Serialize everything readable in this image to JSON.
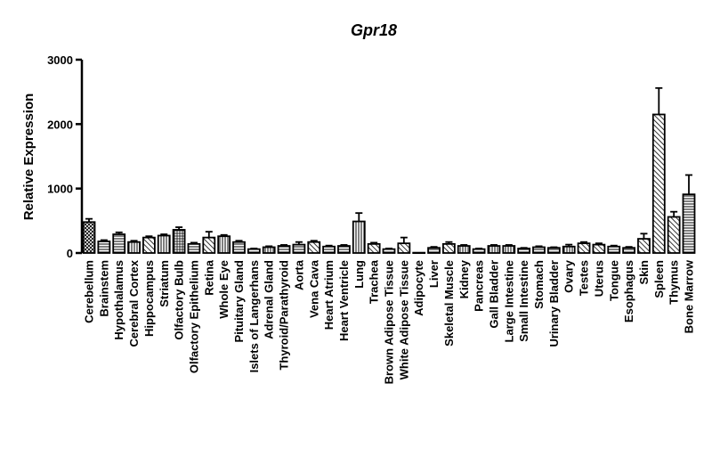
{
  "chart_data": {
    "type": "bar",
    "title": "Gpr18",
    "xlabel": "",
    "ylabel": "Relative Expression",
    "ylim": [
      0,
      3000
    ],
    "yticks": [
      "0",
      "1000",
      "2000",
      "3000"
    ],
    "grid": false,
    "legend": "none",
    "categories": [
      "Cerebellum",
      "Brainstem",
      "Hypothalamus",
      "Cerebral Cortex",
      "Hippocampus",
      "Striatum",
      "Olfactory Bulb",
      "Olfactory Epithelium",
      "Retina",
      "Whole Eye",
      "Pituitary Gland",
      "Islets of Langerhans",
      "Adrenal Gland",
      "Thyroid/Parathyroid",
      "Aorta",
      "Vena Cava",
      "Heart Atrium",
      "Heart Ventricle",
      "Lung",
      "Trachea",
      "Brown Adipose Tissue",
      "White Adipose Tissue",
      "Adipocyte",
      "Liver",
      "Skeletal Muscle",
      "Kidney",
      "Pancreas",
      "Gall Bladder",
      "Large Intestine",
      "Small Intestine",
      "Stomach",
      "Urinary Bladder",
      "Ovary",
      "Testes",
      "Uterus",
      "Tongue",
      "Esophagus",
      "Skin",
      "Spleen",
      "Thymus",
      "Bone Marrow"
    ],
    "values": [
      480,
      180,
      290,
      170,
      240,
      270,
      360,
      140,
      240,
      260,
      170,
      60,
      90,
      110,
      130,
      170,
      100,
      110,
      490,
      140,
      60,
      150,
      5,
      80,
      140,
      110,
      60,
      110,
      110,
      70,
      90,
      80,
      100,
      150,
      130,
      100,
      80,
      220,
      2150,
      560,
      910
    ],
    "errors": [
      50,
      20,
      30,
      20,
      20,
      20,
      40,
      20,
      90,
      20,
      20,
      10,
      15,
      15,
      40,
      20,
      15,
      15,
      130,
      20,
      10,
      90,
      0,
      15,
      30,
      15,
      10,
      15,
      15,
      10,
      15,
      10,
      30,
      20,
      20,
      15,
      15,
      80,
      410,
      80,
      300
    ],
    "patterns": [
      "crosshatch",
      "hstripe",
      "hstripe",
      "vstripe",
      "hatch",
      "vstripe",
      "grid",
      "hstripe",
      "hatch",
      "vstripe",
      "hstripe",
      "hstripe",
      "vstripe",
      "hstripe",
      "hstripe",
      "hatch",
      "hstripe",
      "hstripe",
      "vstripe",
      "hatch",
      "hstripe",
      "hatch",
      "hstripe",
      "hstripe",
      "hatch",
      "vstripe",
      "hstripe",
      "vstripe",
      "vstripe",
      "hstripe",
      "hstripe",
      "hstripe",
      "vstripe",
      "hatch",
      "hatch",
      "hstripe",
      "hstripe",
      "hatch",
      "hatch",
      "hatch",
      "hstripe"
    ]
  }
}
